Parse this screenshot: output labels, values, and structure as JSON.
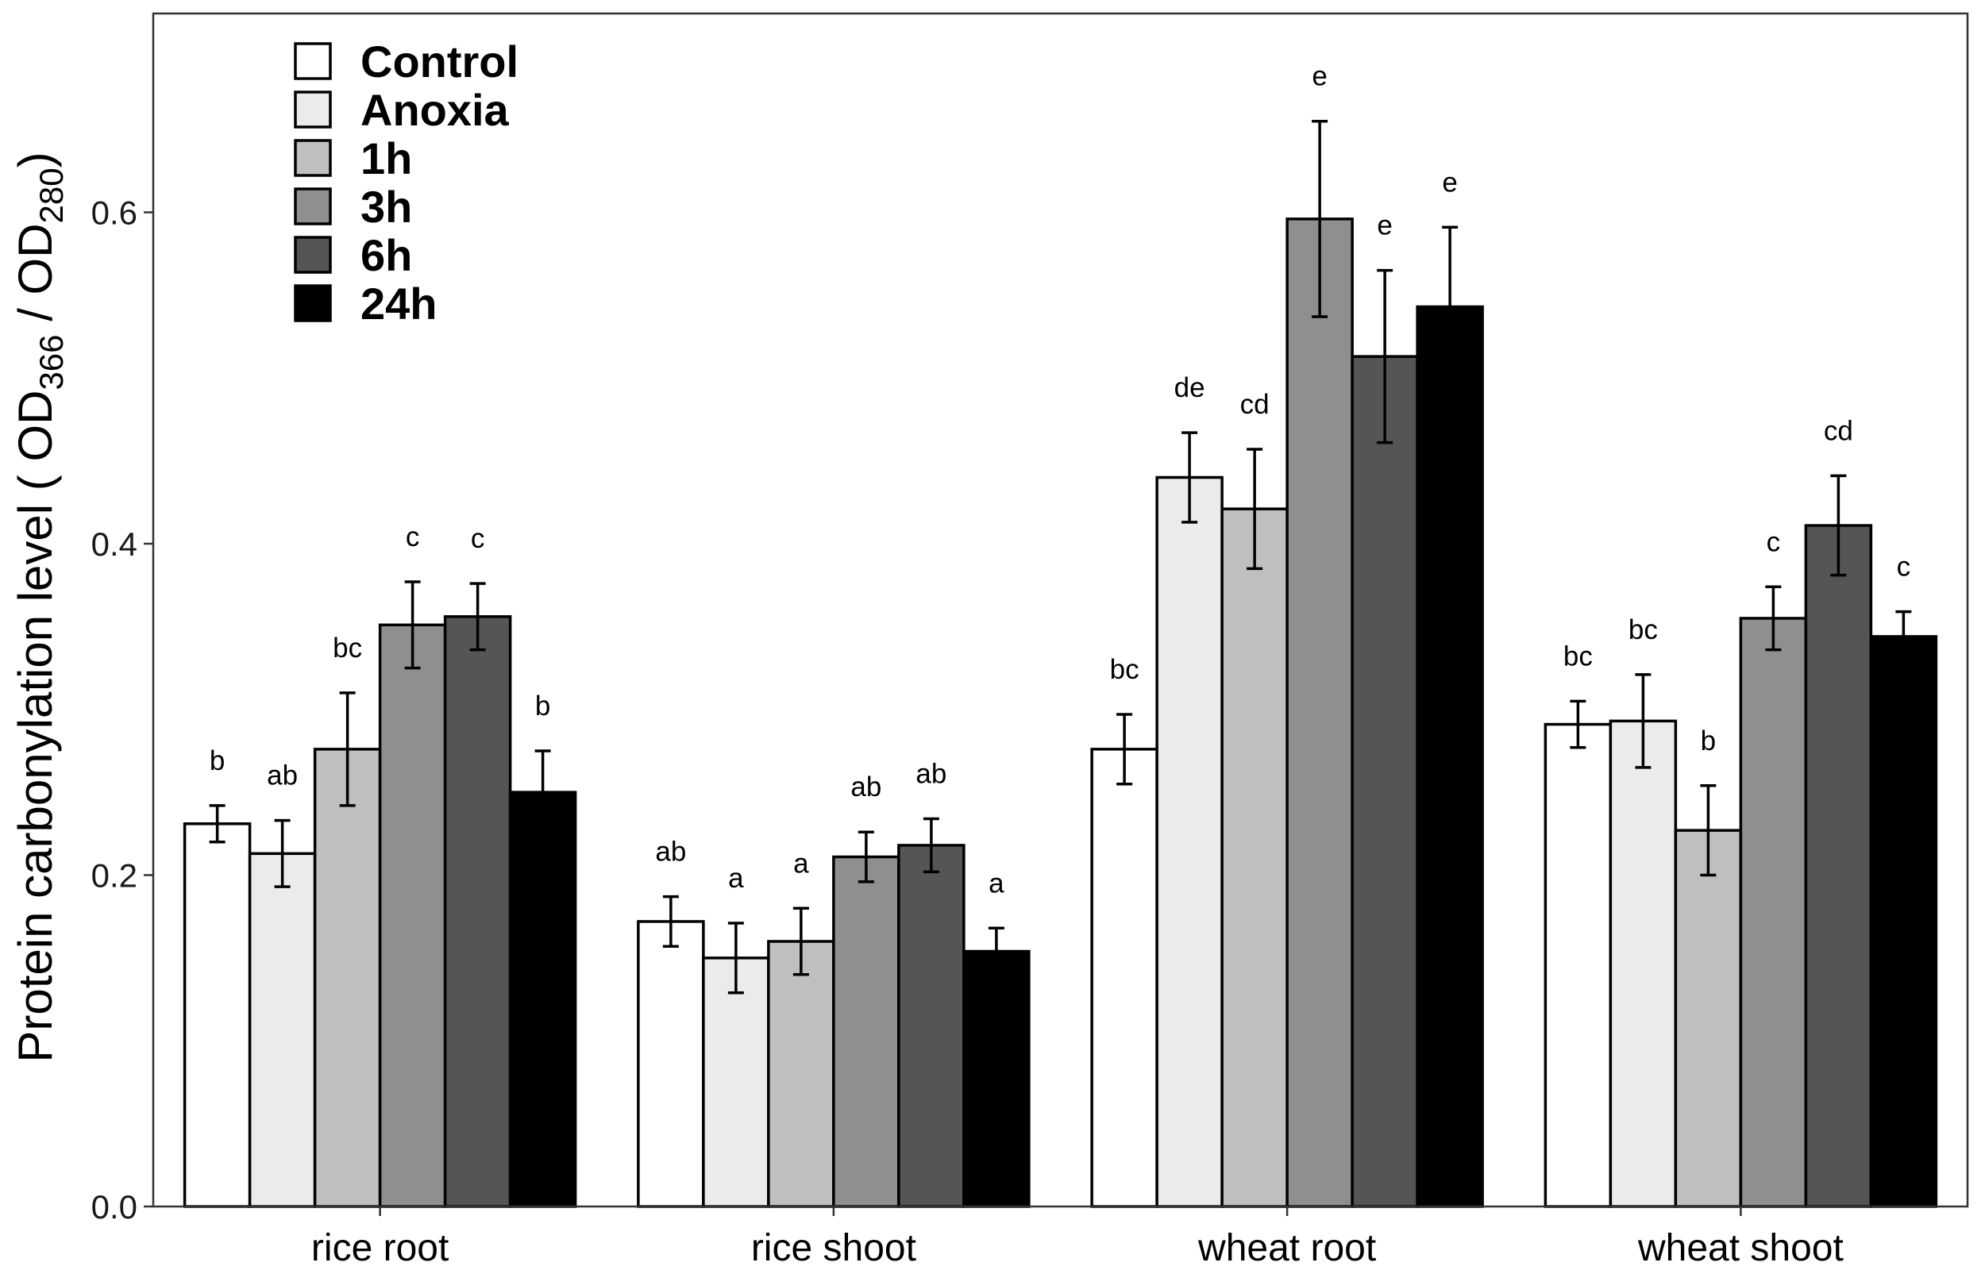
{
  "chart_data": {
    "type": "bar",
    "ylabel": {
      "main": "Protein carbonylation level ( OD",
      "sub1": "366",
      "mid": " / OD",
      "sub2": "280",
      "end": ")"
    },
    "xlabel": "",
    "ylim": [
      0,
      0.72
    ],
    "yticks": [
      0.0,
      0.2,
      0.4,
      0.6
    ],
    "ytick_labels": [
      "0.0",
      "0.2",
      "0.4",
      "0.6"
    ],
    "grid": false,
    "legend_position": "top-left",
    "categories": [
      "rice root",
      "rice shoot",
      "wheat root",
      "wheat shoot"
    ],
    "series": [
      {
        "name": "Control",
        "color": "#ffffff",
        "values": [
          0.231,
          0.172,
          0.276,
          0.291
        ],
        "errors": [
          0.011,
          0.015,
          0.021,
          0.014
        ],
        "letters": [
          "b",
          "ab",
          "bc",
          "bc"
        ]
      },
      {
        "name": "Anoxia",
        "color": "#ebebeb",
        "values": [
          0.213,
          0.15,
          0.44,
          0.293
        ],
        "errors": [
          0.02,
          0.021,
          0.027,
          0.028
        ],
        "letters": [
          "ab",
          "a",
          "de",
          "bc"
        ]
      },
      {
        "name": "1h",
        "color": "#bfbfbf",
        "values": [
          0.276,
          0.16,
          0.421,
          0.227
        ],
        "errors": [
          0.034,
          0.02,
          0.036,
          0.027
        ],
        "letters": [
          "bc",
          "a",
          "cd",
          "b"
        ]
      },
      {
        "name": "3h",
        "color": "#8f8f8f",
        "values": [
          0.351,
          0.211,
          0.596,
          0.355
        ],
        "errors": [
          0.026,
          0.015,
          0.059,
          0.019
        ],
        "letters": [
          "c",
          "ab",
          "e",
          "c"
        ]
      },
      {
        "name": "6h",
        "color": "#555555",
        "values": [
          0.356,
          0.218,
          0.513,
          0.411
        ],
        "errors": [
          0.02,
          0.016,
          0.052,
          0.03
        ],
        "letters": [
          "c",
          "ab",
          "e",
          "cd"
        ]
      },
      {
        "name": "24h",
        "color": "#000000",
        "values": [
          0.25,
          0.154,
          0.543,
          0.344
        ],
        "errors": [
          0.025,
          0.014,
          0.048,
          0.015
        ],
        "letters": [
          "b",
          "a",
          "e",
          "c"
        ]
      }
    ]
  }
}
